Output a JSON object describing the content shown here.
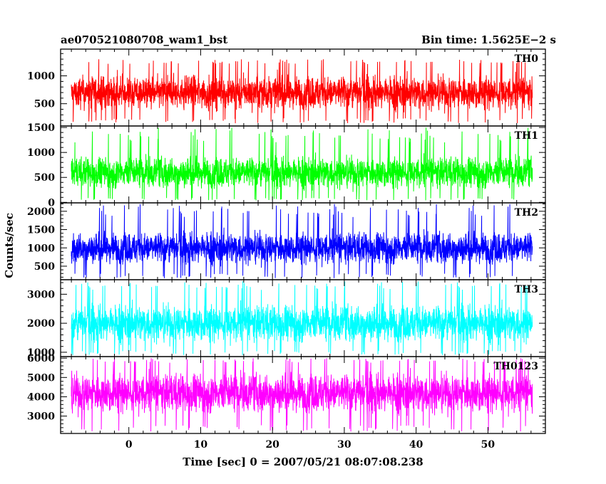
{
  "header": {
    "left_title": "ae070521080708_wam1_bst",
    "right_title": "Bin time: 1.5625E−2 s"
  },
  "ylabel": "Counts/sec",
  "xlabel": "Time [sec] 0 = 2007/05/21 08:07:08.238",
  "chart_data": {
    "type": "line",
    "title": "ae070521080708_wam1_bst",
    "subtitle": "Bin time: 1.5625E−2 s",
    "xlabel": "Time [sec] 0 = 2007/05/21 08:07:08.238",
    "ylabel": "Counts/sec",
    "xlim": [
      -9.5,
      58
    ],
    "x_data_range": [
      -8,
      56.2
    ],
    "xticks": [
      0,
      10,
      20,
      30,
      40,
      50
    ],
    "x_tick_labels": [
      "0",
      "10",
      "20",
      "30",
      "40",
      "50"
    ],
    "grid": false,
    "panels": [
      {
        "name": "TH0",
        "color": "#ff0000",
        "ylim": [
          100,
          1480
        ],
        "yticks": [
          500,
          1000
        ],
        "y_tick_labels": [
          "500",
          "1000"
        ],
        "y_min": 150,
        "y_max": 1300,
        "y_mean": 700,
        "y_band": [
          300,
          1150
        ]
      },
      {
        "name": "TH1",
        "color": "#00ff00",
        "ylim": [
          -10,
          1530
        ],
        "yticks": [
          0,
          500,
          1000,
          1500
        ],
        "y_tick_labels": [
          "0",
          "500",
          "1000",
          "1500"
        ],
        "y_min": 40,
        "y_max": 1500,
        "y_mean": 600,
        "y_band": [
          120,
          1000
        ]
      },
      {
        "name": "TH2",
        "color": "#0000ff",
        "ylim": [
          130,
          2230
        ],
        "yticks": [
          500,
          1000,
          1500,
          2000
        ],
        "y_tick_labels": [
          "500",
          "1000",
          "1500",
          "2000"
        ],
        "y_min": 170,
        "y_max": 2200,
        "y_mean": 1000,
        "y_band": [
          380,
          1600
        ]
      },
      {
        "name": "TH3",
        "color": "#00ffff",
        "ylim": [
          850,
          3500
        ],
        "yticks": [
          1000,
          2000,
          3000
        ],
        "y_tick_labels": [
          "1000",
          "2000",
          "3000"
        ],
        "y_min": 900,
        "y_max": 3450,
        "y_mean": 2000,
        "y_band": [
          1150,
          2950
        ]
      },
      {
        "name": "TH0123",
        "color": "#ff00ff",
        "ylim": [
          2100,
          6080
        ],
        "yticks": [
          3000,
          4000,
          5000,
          6000
        ],
        "y_tick_labels": [
          "3000",
          "4000",
          "5000",
          "6000"
        ],
        "y_min": 2200,
        "y_max": 6000,
        "y_mean": 4200,
        "y_band": [
          2750,
          5600
        ]
      }
    ]
  }
}
